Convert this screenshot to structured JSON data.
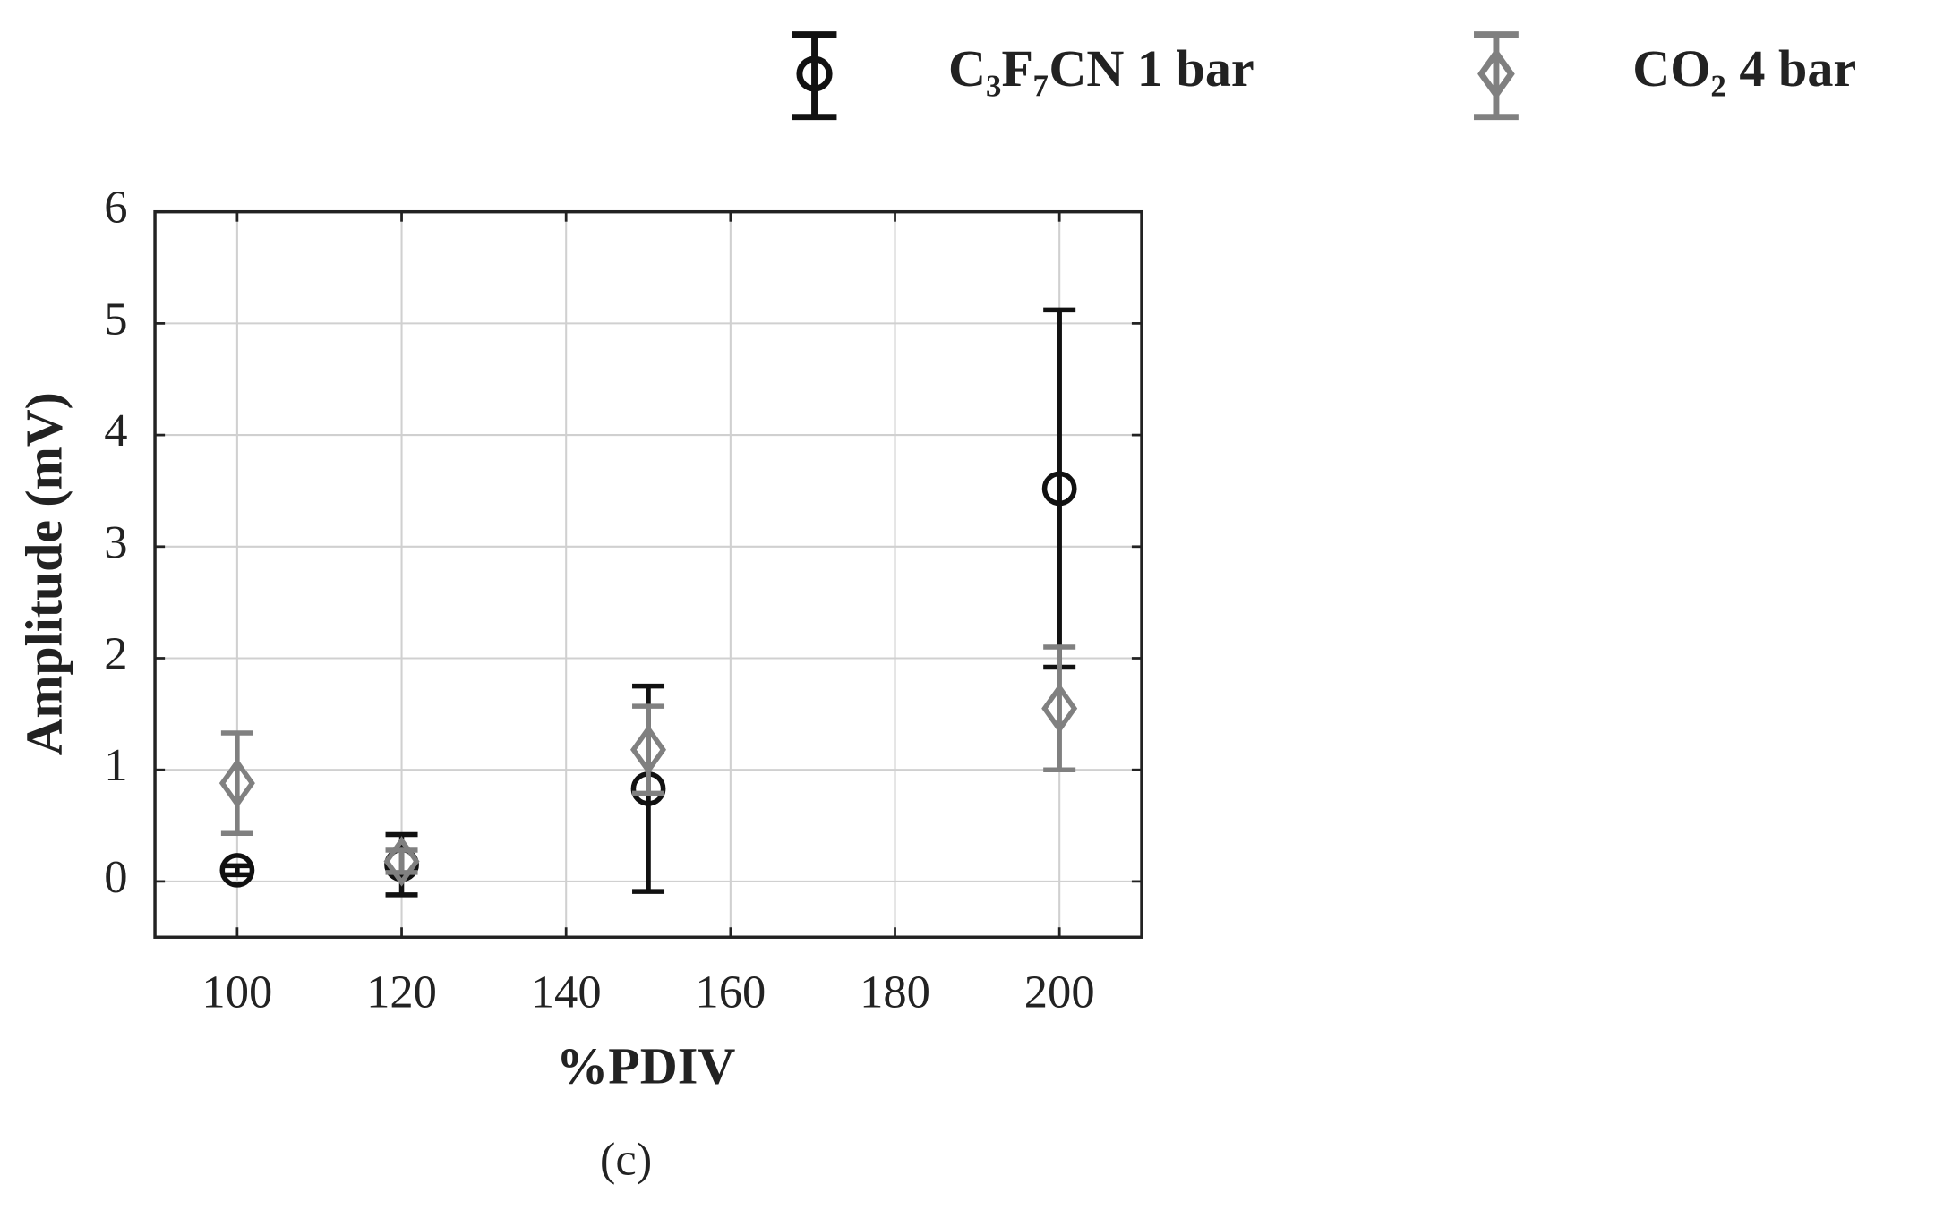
{
  "chart_data": {
    "type": "errorbar",
    "subtitle": "(c)",
    "x_label": "%PDIV",
    "y_label": "Amplitude (mV)",
    "x": [
      100,
      120,
      150,
      200
    ],
    "series": [
      {
        "name": "C₃F₇CN 1 bar",
        "color": "#111111",
        "marker": "circle",
        "values": [
          0.1,
          0.15,
          0.83,
          3.52
        ],
        "errors": [
          0.04,
          0.27,
          0.92,
          1.6
        ]
      },
      {
        "name": "CO₂ 4 bar",
        "color": "#808080",
        "marker": "diamond",
        "values": [
          0.88,
          0.18,
          1.18,
          1.55
        ],
        "errors": [
          0.45,
          0.1,
          0.39,
          0.55
        ]
      }
    ],
    "xlim": [
      90,
      210
    ],
    "xticks": [
      100,
      120,
      140,
      160,
      180,
      200
    ],
    "ylim": [
      -0.5,
      6
    ],
    "yticks": [
      0,
      1,
      2,
      3,
      4,
      5,
      6
    ],
    "grid": true,
    "legend": "top"
  }
}
